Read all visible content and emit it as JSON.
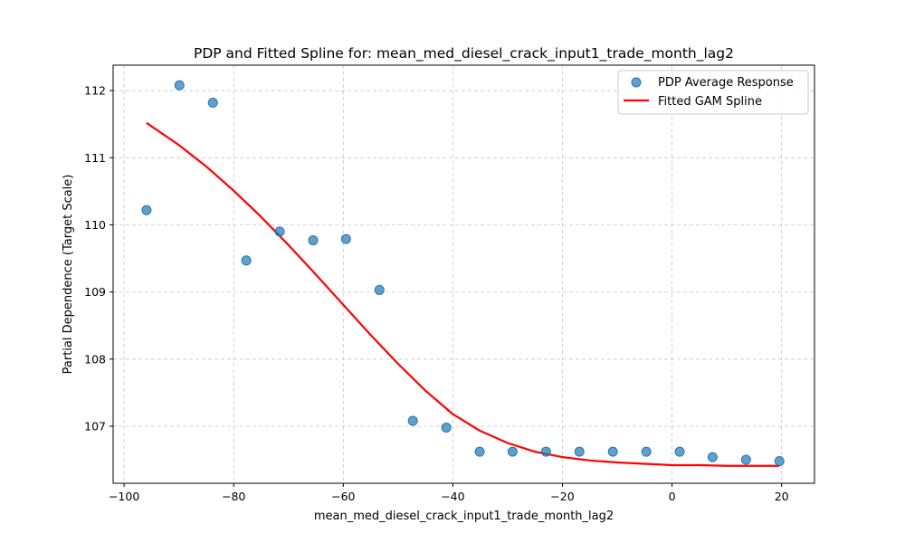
{
  "chart_data": {
    "type": "scatter",
    "title": "PDP and Fitted Spline for: mean_med_diesel_crack_input1_trade_month_lag2",
    "xlabel": "mean_med_diesel_crack_input1_trade_month_lag2",
    "ylabel": "Partial Dependence (Target Scale)",
    "xlim": [
      -102,
      26
    ],
    "ylim": [
      106.15,
      112.38
    ],
    "xticks": [
      -100,
      -80,
      -60,
      -40,
      -20,
      0,
      20
    ],
    "yticks": [
      107,
      108,
      109,
      110,
      111,
      112
    ],
    "grid": true,
    "legend_position": "top-right",
    "series": [
      {
        "name": "PDP Average Response",
        "kind": "scatter",
        "color": "#1f77b4",
        "x": [
          -95.9,
          -89.9,
          -83.8,
          -77.7,
          -71.6,
          -65.5,
          -59.5,
          -53.4,
          -47.3,
          -41.2,
          -35.1,
          -29.1,
          -23.0,
          -16.9,
          -10.8,
          -4.7,
          1.4,
          7.4,
          13.5,
          19.6
        ],
        "y": [
          110.22,
          112.08,
          111.82,
          109.47,
          109.9,
          109.77,
          109.79,
          109.03,
          107.08,
          106.98,
          106.62,
          106.62,
          106.62,
          106.62,
          106.62,
          106.62,
          106.62,
          106.54,
          106.5,
          106.48
        ]
      },
      {
        "name": "Fitted GAM Spline",
        "kind": "line",
        "color": "#ff0000",
        "x": [
          -95.9,
          -90,
          -85,
          -80,
          -75,
          -70,
          -65,
          -60,
          -55,
          -50,
          -45,
          -40,
          -35,
          -30,
          -25,
          -20,
          -15,
          -10,
          -5,
          0,
          5,
          10,
          15,
          19.6
        ],
        "y": [
          111.52,
          111.19,
          110.87,
          110.51,
          110.12,
          109.7,
          109.26,
          108.81,
          108.36,
          107.93,
          107.53,
          107.18,
          106.93,
          106.75,
          106.62,
          106.54,
          106.49,
          106.46,
          106.44,
          106.42,
          106.42,
          106.41,
          106.41,
          106.41
        ]
      }
    ]
  }
}
